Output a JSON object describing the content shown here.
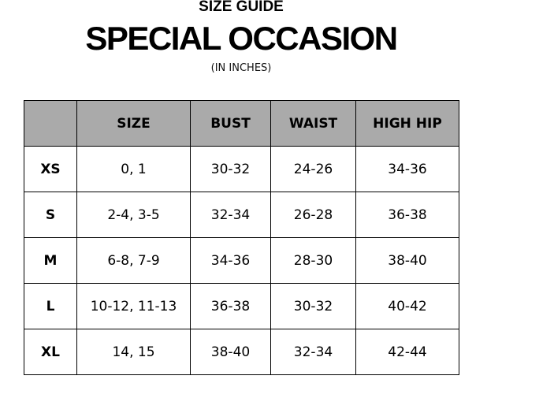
{
  "header": {
    "subtitle": "SIZE GUIDE",
    "title": "SPECIAL OCCASION",
    "unit_note": "(IN INCHES)"
  },
  "table": {
    "columns": [
      "",
      "SIZE",
      "BUST",
      "WAIST",
      "HIGH HIP"
    ],
    "rows": [
      [
        "XS",
        "0, 1",
        "30-32",
        "24-26",
        "34-36"
      ],
      [
        "S",
        "2-4, 3-5",
        "32-34",
        "26-28",
        "36-38"
      ],
      [
        "M",
        "6-8, 7-9",
        "34-36",
        "28-30",
        "38-40"
      ],
      [
        "L",
        "10-12, 11-13",
        "36-38",
        "30-32",
        "40-42"
      ],
      [
        "XL",
        "14, 15",
        "38-40",
        "32-34",
        "42-44"
      ]
    ]
  },
  "colors": {
    "header_bg": "#aaaaaa",
    "border": "#000000"
  }
}
